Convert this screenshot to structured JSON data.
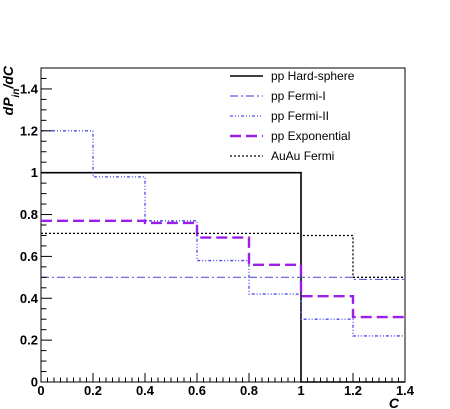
{
  "chart_data": {
    "type": "line",
    "title": "",
    "xlabel": "C",
    "ylabel": "dP_{in}/dC",
    "xlim": [
      0,
      1.4
    ],
    "ylim": [
      0,
      1.5
    ],
    "x_ticks": [
      "0",
      "0.2",
      "0.4",
      "0.6",
      "0.8",
      "1",
      "1.2",
      "1.4"
    ],
    "y_ticks": [
      "0",
      "0.2",
      "0.4",
      "0.6",
      "0.8",
      "1",
      "1.2",
      "1.4"
    ],
    "bin_edges": [
      0,
      0.2,
      0.4,
      0.6,
      0.8,
      1.0,
      1.2,
      1.4
    ],
    "legend_position": "top-right",
    "grid": false,
    "series": [
      {
        "name": "pp Hard-sphere",
        "values": [
          1.0,
          1.0,
          1.0,
          1.0,
          1.0,
          0.0,
          0.0
        ],
        "color": "#000000",
        "style": "solid"
      },
      {
        "name": "pp Fermi-I",
        "values": [
          0.5,
          0.5,
          0.5,
          0.5,
          0.5,
          0.5,
          0.49
        ],
        "color": "#5b5bd6",
        "style": "dash-dot"
      },
      {
        "name": "pp Fermi-II",
        "values": [
          1.2,
          0.98,
          0.77,
          0.58,
          0.42,
          0.3,
          0.22
        ],
        "color": "#4a4aee",
        "style": "dash-dot-dot"
      },
      {
        "name": "pp Exponential",
        "values": [
          0.77,
          0.77,
          0.76,
          0.69,
          0.56,
          0.41,
          0.31
        ],
        "color": "#9b1fe8",
        "style": "long-dash"
      },
      {
        "name": "AuAu Fermi",
        "values": [
          0.71,
          0.71,
          0.71,
          0.71,
          0.71,
          0.7,
          0.5
        ],
        "color": "#000000",
        "style": "dotted"
      }
    ]
  }
}
